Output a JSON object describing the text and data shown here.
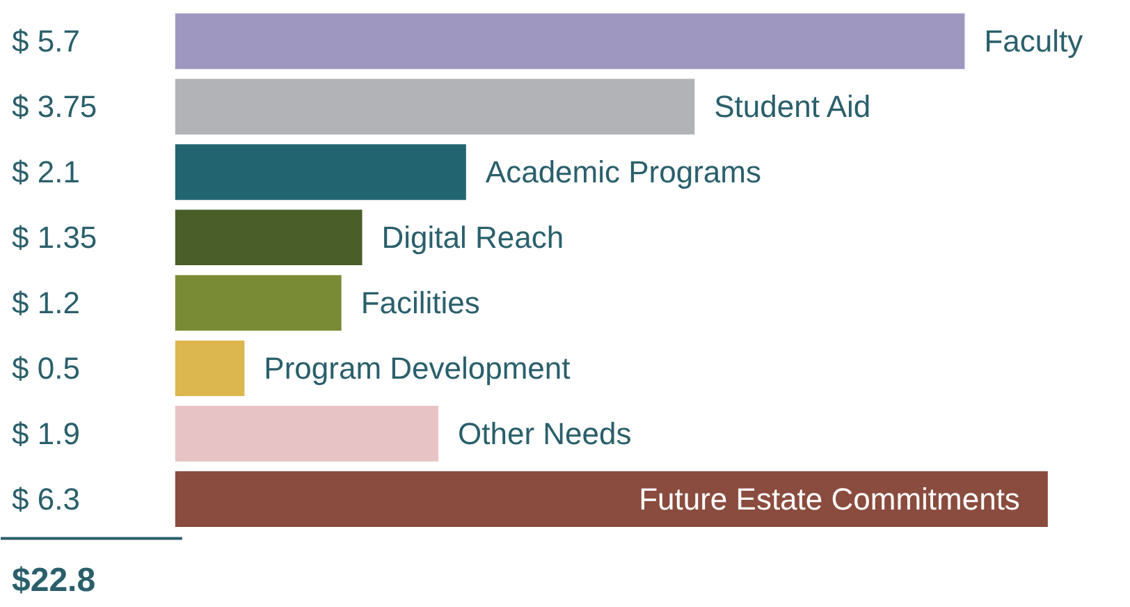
{
  "chart_data": {
    "type": "bar",
    "orientation": "horizontal",
    "categories": [
      "Faculty",
      "Student Aid",
      "Academic Programs",
      "Digital Reach",
      "Facilities",
      "Program Development",
      "Other Needs",
      "Future Estate Commitments"
    ],
    "values": [
      5.7,
      3.75,
      2.1,
      1.35,
      1.2,
      0.5,
      1.9,
      6.3
    ],
    "colors": [
      "#9e98c1",
      "#b2b3b6",
      "#226570",
      "#4a5e2a",
      "#7a8b36",
      "#dcb64e",
      "#e8c3c5",
      "#8a4c3e"
    ],
    "value_labels": [
      "$ 5.7",
      "$ 3.75",
      "$ 2.1",
      "$ 1.35",
      "$ 1.2",
      "$ 0.5",
      "$ 1.9",
      "$ 6.3"
    ],
    "annotations": [
      "$22.8"
    ],
    "grid": false
  }
}
